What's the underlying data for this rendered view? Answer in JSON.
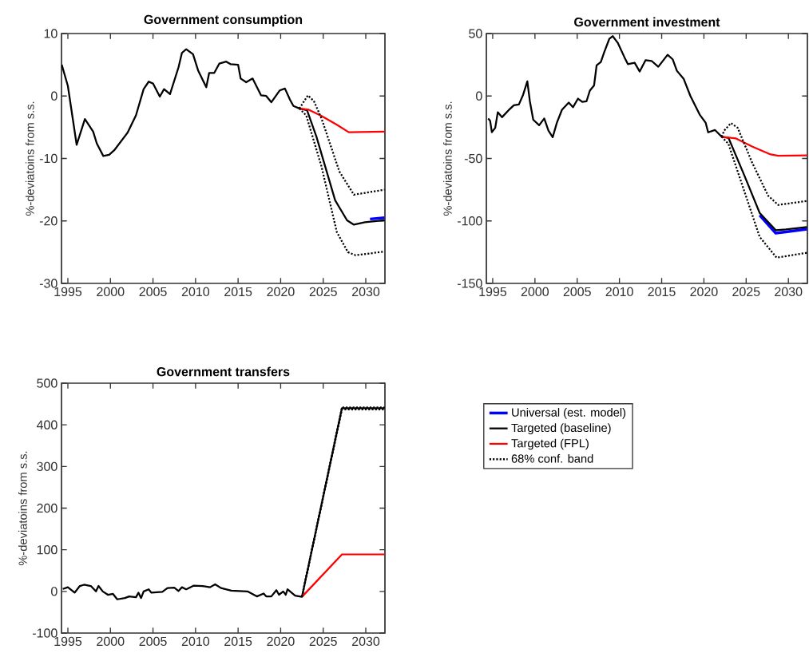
{
  "chart_data": [
    {
      "type": "line",
      "title": "Government consumption",
      "ylabel": "%-deviatoins from s.s.",
      "xlim": [
        1994.25,
        2032.25
      ],
      "xticks": [
        1995,
        2000,
        2005,
        2010,
        2015,
        2020,
        2025,
        2030
      ],
      "ylim": [
        -30,
        10
      ],
      "yticks": [
        -30,
        -20,
        -10,
        0,
        10
      ],
      "series": [
        {
          "color": "#0000ff",
          "line_style": "solid",
          "x": [
            2030.5,
            2032.2
          ],
          "values": [
            -19.7,
            -19.5
          ]
        },
        {
          "color": "#000000",
          "line_style": "solid",
          "x": [
            1994.28,
            1995.0,
            1996.03,
            1997.0,
            1997.97,
            1998.4,
            1999.16,
            1999.85,
            2000.5,
            2002.0,
            2003.0,
            2003.9,
            2004.5,
            2005.0,
            2005.8,
            2006.3,
            2007.0,
            2008.0,
            2008.4,
            2008.9,
            2009.7,
            2010.3,
            2011.26,
            2011.6,
            2012.2,
            2012.8,
            2013.6,
            2014.1,
            2015.0,
            2015.3,
            2015.95,
            2016.7,
            2017.7,
            2018.3,
            2018.9,
            2019.9,
            2020.5,
            2021.1,
            2021.5,
            2022.2,
            2023.1,
            2024.2,
            2026.4,
            2027.8,
            2028.6,
            2029.9,
            2032.2
          ],
          "values": [
            5,
            1.6,
            -7.8,
            -3.7,
            -5.7,
            -7.6,
            -9.6,
            -9.4,
            -8.6,
            -5.9,
            -3.1,
            1.1,
            2.3,
            2.0,
            -0.1,
            1.1,
            0.3,
            4.6,
            6.9,
            7.5,
            6.7,
            4.1,
            1.4,
            3.7,
            3.7,
            5.2,
            5.5,
            5.1,
            5.0,
            2.8,
            2.2,
            2.8,
            0.1,
            0,
            -1.0,
            0.9,
            1.2,
            -0.6,
            -1.6,
            -2.0,
            -2.3,
            -6.5,
            -16.7,
            -19.9,
            -20.6,
            -20.2,
            -19.9
          ]
        },
        {
          "color": "#ff0000",
          "line_style": "solid",
          "x": [
            2022.2,
            2023.3,
            2024.8,
            2026.6,
            2028.0,
            2032.2
          ],
          "values": [
            -2.0,
            -2.2,
            -3.2,
            -4.6,
            -5.8,
            -5.7
          ]
        },
        {
          "color": "#000000",
          "line_style": "dotted",
          "x": [
            2022.2,
            2023.2,
            2023.9,
            2024.8,
            2026.9,
            2028.6,
            2032.2
          ],
          "values": [
            -2.0,
            0.1,
            -0.8,
            -3.6,
            -12.1,
            -15.8,
            -15.0
          ]
        },
        {
          "color": "#000000",
          "line_style": "dotted",
          "x": [
            2022.2,
            2023.0,
            2024.8,
            2026.6,
            2027.9,
            2028.8,
            2032.2
          ],
          "values": [
            -2.0,
            -3.1,
            -11.3,
            -21.8,
            -25.0,
            -25.5,
            -24.9
          ]
        }
      ]
    },
    {
      "type": "line",
      "title": "Government investment",
      "ylabel": "%-deviatoins from s.s.",
      "xlim": [
        1994.25,
        2032.25
      ],
      "xticks": [
        1995,
        2000,
        2005,
        2010,
        2015,
        2020,
        2025,
        2030
      ],
      "ylim": [
        -150,
        50
      ],
      "yticks": [
        -150,
        -100,
        -50,
        0,
        50
      ],
      "series": [
        {
          "color": "#0000ff",
          "line_style": "solid",
          "x": [
            2026.6,
            2028.5,
            2029.7,
            2032.2
          ],
          "values": [
            -95.5,
            -109.8,
            -108.8,
            -106.6
          ]
        },
        {
          "color": "#000000",
          "line_style": "solid",
          "x": [
            1994.47,
            1994.7,
            1994.9,
            1995.3,
            1995.6,
            1996.1,
            1997.0,
            1997.5,
            1998.1,
            1998.6,
            1999.1,
            1999.4,
            1999.8,
            2000.5,
            2001.1,
            2001.6,
            2002.1,
            2002.6,
            2003.2,
            2004.0,
            2004.5,
            2005.1,
            2005.6,
            2006.1,
            2006.5,
            2007.0,
            2007.3,
            2007.8,
            2008.2,
            2008.8,
            2009.2,
            2009.8,
            2010.6,
            2011.0,
            2011.8,
            2012.4,
            2013.1,
            2013.8,
            2014.6,
            2015.7,
            2016.3,
            2016.8,
            2017.6,
            2018.4,
            2019.5,
            2020.2,
            2020.5,
            2021.3,
            2022.1,
            2022.9,
            2024.8,
            2026.6,
            2028.5,
            2029.7,
            2032.2
          ],
          "values": [
            -18,
            -20,
            -29,
            -25.5,
            -13,
            -17,
            -10.6,
            -7.4,
            -6.8,
            1,
            11.7,
            -4.3,
            -19,
            -23.4,
            -18,
            -27.7,
            -33,
            -21.3,
            -11,
            -5.3,
            -9,
            -2.1,
            -4.7,
            -4.3,
            4.3,
            8.5,
            24.5,
            27.2,
            35.1,
            45.7,
            47.9,
            42.6,
            30.9,
            25.5,
            26.6,
            19.6,
            28.7,
            28.1,
            23.4,
            33,
            29.4,
            20.2,
            13.8,
            0,
            -14.9,
            -21.3,
            -29.1,
            -27.2,
            -32.6,
            -33.4,
            -63.8,
            -93.6,
            -107.4,
            -106.8,
            -104.8
          ]
        },
        {
          "color": "#ff0000",
          "line_style": "solid",
          "x": [
            2022.1,
            2023.8,
            2025.7,
            2027.9,
            2028.8,
            2032.2
          ],
          "values": [
            -32.6,
            -34,
            -40.4,
            -46.8,
            -47.9,
            -47.5
          ]
        },
        {
          "color": "#000000",
          "line_style": "dotted",
          "x": [
            2022.1,
            2022.4,
            2023.2,
            2024.0,
            2025.7,
            2027.6,
            2028.8,
            2032.2
          ],
          "values": [
            -32.6,
            -27.7,
            -21.7,
            -25.5,
            -53.2,
            -79.8,
            -87.2,
            -84
          ]
        },
        {
          "color": "#000000",
          "line_style": "dotted",
          "x": [
            2022.1,
            2022.9,
            2024.8,
            2026.6,
            2028.6,
            2032.2
          ],
          "values": [
            -32.6,
            -38.3,
            -76.6,
            -112.8,
            -129.4,
            -125.5
          ]
        }
      ]
    },
    {
      "type": "line",
      "title": "Government transfers",
      "ylabel": "%-deviatoins from s.s.",
      "legend": "right",
      "xlim": [
        1994.25,
        2032.25
      ],
      "xticks": [
        1995,
        2000,
        2005,
        2010,
        2015,
        2020,
        2025,
        2030
      ],
      "ylim": [
        -100,
        500
      ],
      "yticks": [
        -100,
        0,
        100,
        200,
        300,
        400,
        500
      ],
      "series": [
        {
          "name": "Universal (est. model)",
          "color": "#0000ff",
          "line_style": "solid"
        },
        {
          "name": "Targeted (baseline)",
          "color": "#000000",
          "line_style": "solid",
          "x": [
            1994.4,
            1995.0,
            1995.8,
            1996.4,
            1996.9,
            1997.7,
            1998.3,
            1998.6,
            1999.1,
            1999.7,
            2000.3,
            2000.8,
            2001.7,
            2002.2,
            2003.0,
            2003.3,
            2003.6,
            2003.9,
            2004.5,
            2004.8,
            2006.1,
            2006.7,
            2007.5,
            2008.0,
            2008.4,
            2008.9,
            2009.8,
            2010.8,
            2011.7,
            2012.3,
            2013.0,
            2014.2,
            2016.1,
            2017.2,
            2018.0,
            2018.3,
            2018.9,
            2019.5,
            2019.8,
            2020.3,
            2020.6,
            2020.8,
            2021.7,
            2022.5,
            2027.2,
            2032.2
          ],
          "values": [
            6,
            10,
            -3,
            13,
            16,
            13,
            0,
            13,
            0,
            -8,
            -6,
            -19,
            -16,
            -12,
            -14,
            -3,
            -16,
            0,
            5,
            -3,
            -1,
            8,
            9,
            1,
            10,
            5,
            14,
            13,
            10,
            17,
            8,
            2,
            0,
            -12,
            -5,
            -12,
            -12,
            3,
            -8,
            0,
            -8,
            5,
            -10,
            -13,
            440,
            440
          ]
        },
        {
          "name": "Targeted (FPL)",
          "color": "#ff0000",
          "line_style": "solid",
          "x": [
            2022.5,
            2027.2,
            2032.2
          ],
          "values": [
            -13,
            89,
            89
          ]
        },
        {
          "name": "68% conf. band",
          "color": "#000000",
          "line_style": "dotted",
          "x": [
            2022.5,
            2027.2,
            2032.2
          ],
          "values": [
            -13,
            442,
            442
          ]
        },
        {
          "color": "#000000",
          "line_style": "dotted",
          "x": [
            2022.5,
            2027.2,
            2032.2
          ],
          "values": [
            -13,
            437,
            437
          ]
        }
      ]
    }
  ]
}
